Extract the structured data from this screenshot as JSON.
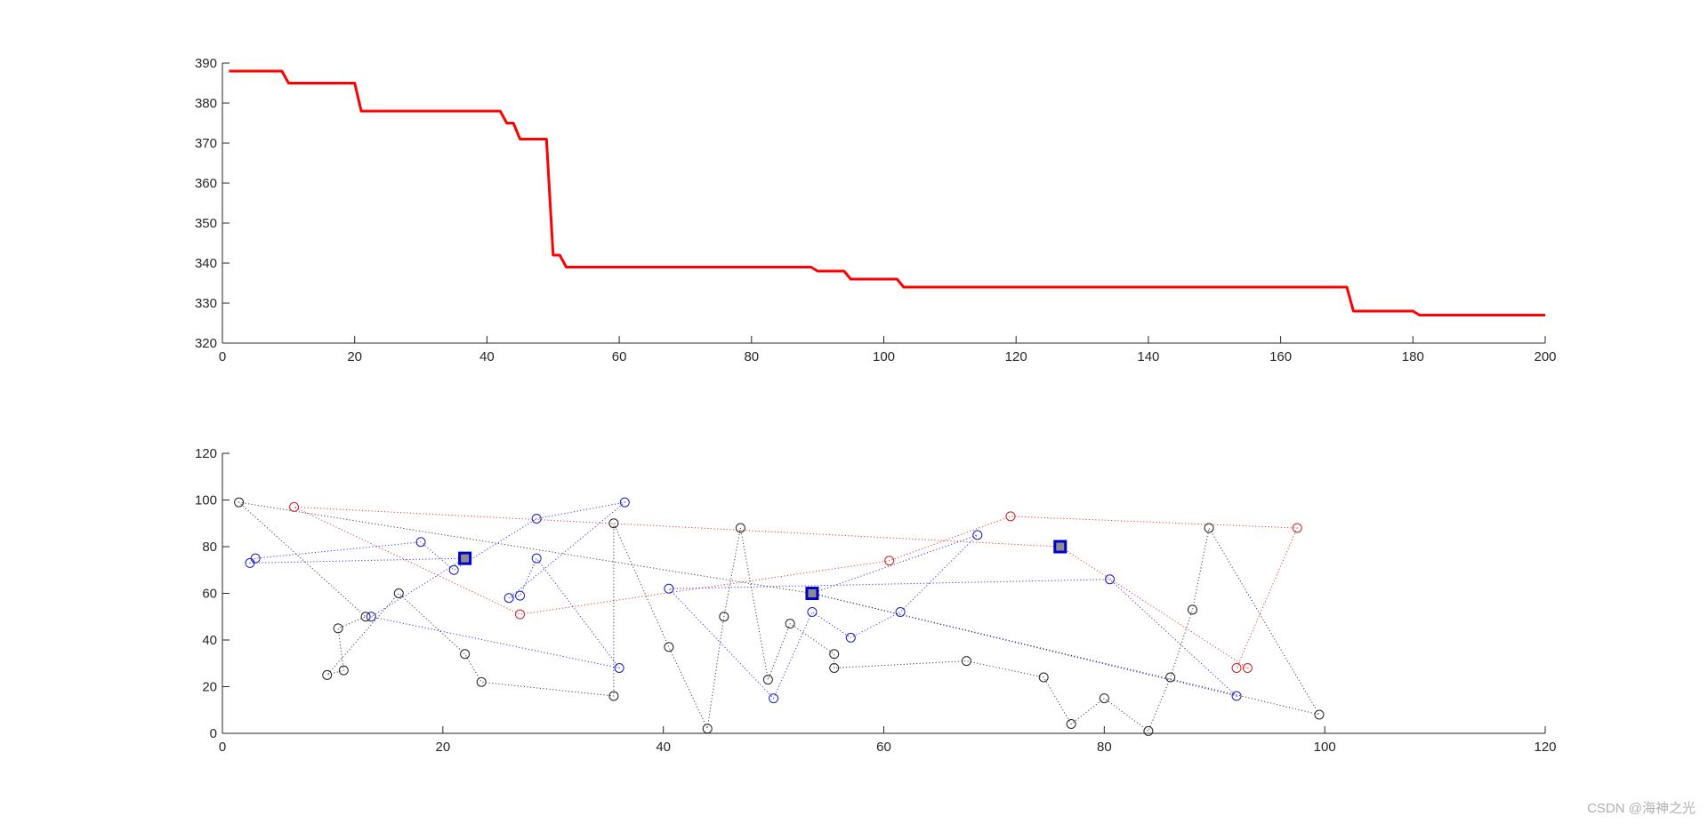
{
  "watermark": "CSDN @海神之光",
  "colors": {
    "line": "#ff0000",
    "axis": "#262626",
    "black": "#222222",
    "blue": "#1a1acc",
    "red": "#cc2222",
    "center": "#0000cc",
    "centerFill": "#8c8c8c"
  },
  "chart_data": [
    {
      "type": "line",
      "title": "",
      "xlabel": "",
      "ylabel": "",
      "xlim": [
        0,
        200
      ],
      "ylim": [
        320,
        390
      ],
      "xticks": [
        "0",
        "20",
        "40",
        "60",
        "80",
        "100",
        "120",
        "140",
        "160",
        "180",
        "200"
      ],
      "yticks": [
        "320",
        "330",
        "340",
        "350",
        "360",
        "370",
        "380",
        "390"
      ],
      "grid": false,
      "series": [
        {
          "color": "#ff0000",
          "x": [
            1,
            9,
            10,
            20,
            21,
            42,
            43,
            44,
            45,
            49,
            50,
            51,
            52,
            89,
            90,
            94,
            95,
            102,
            103,
            170,
            171,
            180,
            181,
            200
          ],
          "y": [
            388,
            388,
            385,
            385,
            378,
            378,
            375,
            375,
            371,
            371,
            342,
            342,
            339,
            339,
            338,
            338,
            336,
            336,
            334,
            334,
            328,
            328,
            327,
            327
          ]
        }
      ]
    },
    {
      "type": "scatter",
      "title": "",
      "xlabel": "",
      "ylabel": "",
      "xlim": [
        0,
        120
      ],
      "ylim": [
        0,
        120
      ],
      "xticks": [
        "0",
        "20",
        "40",
        "60",
        "80",
        "100",
        "120"
      ],
      "yticks": [
        "0",
        "20",
        "40",
        "60",
        "80",
        "100",
        "120"
      ],
      "grid": false,
      "centers": [
        {
          "id": "A",
          "x": 22,
          "y": 75
        },
        {
          "id": "B",
          "x": 53.5,
          "y": 60
        },
        {
          "id": "C",
          "x": 76,
          "y": 80
        }
      ],
      "routes": [
        {
          "color": "blue",
          "center": "A",
          "points": [
            [
              2.5,
              73
            ],
            [
              3,
              75
            ],
            [
              18,
              82
            ],
            [
              21,
              70
            ],
            [
              28.5,
              92
            ],
            [
              36.5,
              99
            ],
            [
              26,
              58
            ],
            [
              27,
              59
            ],
            [
              28.5,
              75
            ],
            [
              36,
              28
            ],
            [
              13.5,
              50
            ]
          ]
        },
        {
          "color": "blue",
          "center": "B",
          "points": [
            [
              68.5,
              85
            ],
            [
              61.5,
              52
            ],
            [
              57,
              41
            ],
            [
              53.5,
              52
            ],
            [
              50,
              15
            ],
            [
              40.5,
              62
            ],
            [
              80.5,
              66
            ],
            [
              92,
              16
            ]
          ]
        },
        {
          "color": "red",
          "center": "C",
          "points": [
            [
              6.5,
              97
            ],
            [
              27,
              51
            ],
            [
              60.5,
              74
            ],
            [
              71.5,
              93
            ],
            [
              97.5,
              88
            ],
            [
              92,
              28
            ],
            [
              93,
              28
            ]
          ]
        },
        {
          "color": "black",
          "center": "B",
          "points": [
            [
              1.5,
              99
            ],
            [
              13,
              50
            ],
            [
              10.5,
              45
            ],
            [
              11,
              27
            ],
            [
              9.5,
              25
            ],
            [
              16,
              60
            ],
            [
              22,
              34
            ],
            [
              23.5,
              22
            ],
            [
              35.5,
              16
            ],
            [
              35.5,
              90
            ],
            [
              40.5,
              37
            ],
            [
              44,
              2
            ],
            [
              45.5,
              50
            ],
            [
              47,
              88
            ],
            [
              49.5,
              23
            ],
            [
              51.5,
              47
            ],
            [
              55.5,
              34
            ],
            [
              55.5,
              28
            ],
            [
              67.5,
              31
            ],
            [
              74.5,
              24
            ],
            [
              77,
              4
            ],
            [
              80,
              15
            ],
            [
              84,
              1
            ],
            [
              86,
              24
            ],
            [
              88,
              53
            ],
            [
              89.5,
              88
            ],
            [
              99.5,
              8
            ]
          ]
        }
      ],
      "markers": {
        "black": [
          [
            1.5,
            99
          ],
          [
            13,
            50
          ],
          [
            10.5,
            45
          ],
          [
            11,
            27
          ],
          [
            9.5,
            25
          ],
          [
            16,
            60
          ],
          [
            22,
            34
          ],
          [
            23.5,
            22
          ],
          [
            35.5,
            16
          ],
          [
            35.5,
            90
          ],
          [
            40.5,
            37
          ],
          [
            44,
            2
          ],
          [
            45.5,
            50
          ],
          [
            47,
            88
          ],
          [
            49.5,
            23
          ],
          [
            51.5,
            47
          ],
          [
            55.5,
            34
          ],
          [
            55.5,
            28
          ],
          [
            67.5,
            31
          ],
          [
            74.5,
            24
          ],
          [
            77,
            4
          ],
          [
            80,
            15
          ],
          [
            84,
            1
          ],
          [
            86,
            24
          ],
          [
            88,
            53
          ],
          [
            89.5,
            88
          ],
          [
            99.5,
            8
          ]
        ],
        "blue": [
          [
            2.5,
            73
          ],
          [
            3,
            75
          ],
          [
            13.5,
            50
          ],
          [
            18,
            82
          ],
          [
            21,
            70
          ],
          [
            26,
            58
          ],
          [
            27,
            59
          ],
          [
            28.5,
            92
          ],
          [
            28.5,
            75
          ],
          [
            36,
            28
          ],
          [
            36.5,
            99
          ],
          [
            40.5,
            62
          ],
          [
            50,
            15
          ],
          [
            53.5,
            52
          ],
          [
            57,
            41
          ],
          [
            61.5,
            52
          ],
          [
            68.5,
            85
          ],
          [
            80.5,
            66
          ],
          [
            92,
            16
          ]
        ],
        "red": [
          [
            6.5,
            97
          ],
          [
            27,
            51
          ],
          [
            60.5,
            74
          ],
          [
            71.5,
            93
          ],
          [
            97.5,
            88
          ],
          [
            92,
            28
          ],
          [
            93,
            28
          ]
        ]
      }
    }
  ]
}
